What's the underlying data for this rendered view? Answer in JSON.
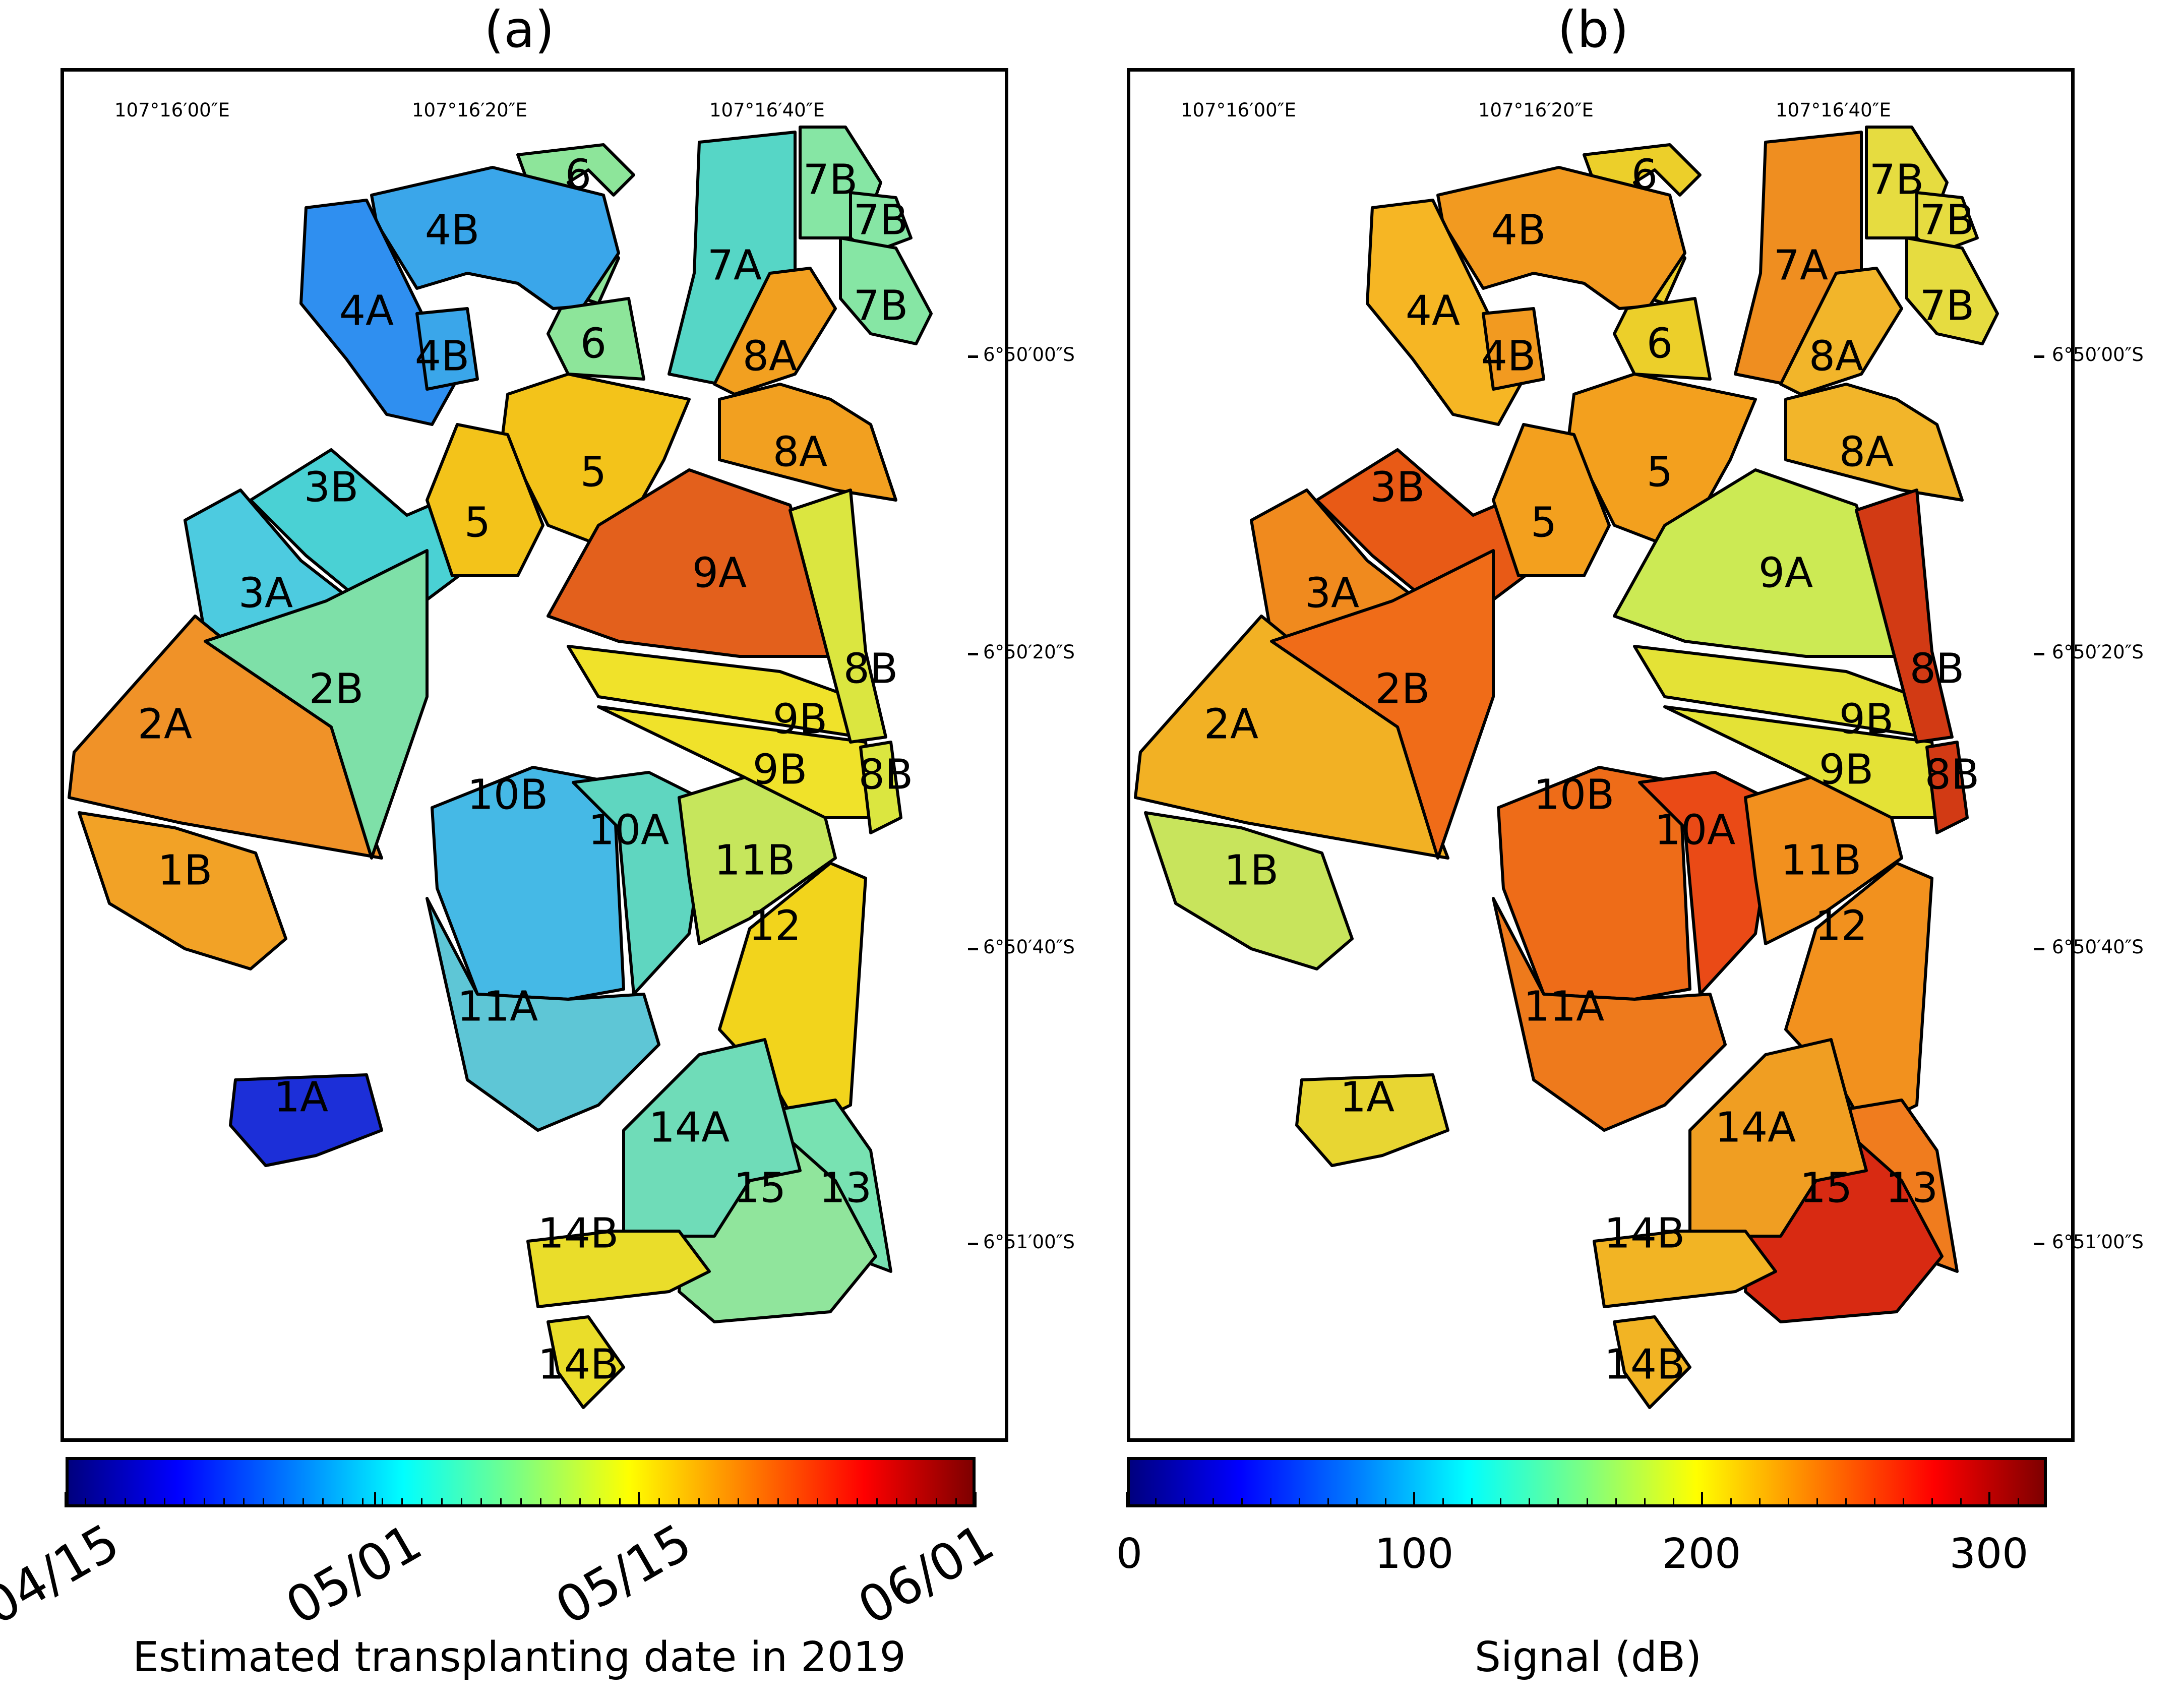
{
  "panels": [
    {
      "title": "(a)",
      "colorbar": {
        "ticks": [
          "04/15",
          "05/01",
          "05/15",
          "06/01"
        ],
        "title": "Estimated transplanting date in 2019",
        "colormap": "jet"
      },
      "lon_labels": [
        "107°16′00″E",
        "107°16′20″E",
        "107°16′40″E"
      ],
      "lat_labels": [
        "6°50′00″S",
        "6°50′20″S",
        "6°50′40″S",
        "6°51′00″S"
      ],
      "fields": [
        {
          "id": "1A",
          "color": "#1c2fd8"
        },
        {
          "id": "1B",
          "color": "#f2a226"
        },
        {
          "id": "2A",
          "color": "#f09228"
        },
        {
          "id": "2B",
          "color": "#7ee0a8"
        },
        {
          "id": "3A",
          "color": "#4dcbe0"
        },
        {
          "id": "3B",
          "color": "#4ad1d4"
        },
        {
          "id": "4A",
          "color": "#2f8ff0"
        },
        {
          "id": "4B",
          "color": "#3aa6ea"
        },
        {
          "id": "5",
          "color": "#f3c31a"
        },
        {
          "id": "6",
          "color": "#8de59a"
        },
        {
          "id": "7A",
          "color": "#56d6c6"
        },
        {
          "id": "7B",
          "color": "#86e6a4"
        },
        {
          "id": "8A",
          "color": "#f2a020"
        },
        {
          "id": "8B",
          "color": "#dbe640"
        },
        {
          "id": "9A",
          "color": "#e3601c"
        },
        {
          "id": "9B",
          "color": "#f0e22a"
        },
        {
          "id": "10A",
          "color": "#5fd6c0"
        },
        {
          "id": "10B",
          "color": "#45b9e6"
        },
        {
          "id": "11A",
          "color": "#5ec6d6"
        },
        {
          "id": "11B",
          "color": "#c6e65c"
        },
        {
          "id": "12",
          "color": "#f2d41c"
        },
        {
          "id": "13",
          "color": "#78e2b2"
        },
        {
          "id": "14A",
          "color": "#6fdcb8"
        },
        {
          "id": "14B",
          "color": "#eadd2a"
        },
        {
          "id": "15",
          "color": "#90e59c"
        }
      ]
    },
    {
      "title": "(b)",
      "colorbar": {
        "ticks": [
          "0",
          "100",
          "200",
          "300"
        ],
        "title": "Signal (dB)",
        "colormap": "jet",
        "range": [
          0,
          320
        ]
      },
      "lon_labels": [
        "107°16′00″E",
        "107°16′20″E",
        "107°16′40″E"
      ],
      "lat_labels": [
        "6°50′00″S",
        "6°50′20″S",
        "6°50′40″S",
        "6°51′00″S"
      ],
      "fields": [
        {
          "id": "1A",
          "color": "#e8d632"
        },
        {
          "id": "1B",
          "color": "#c8e45c"
        },
        {
          "id": "2A",
          "color": "#f2b124"
        },
        {
          "id": "2B",
          "color": "#f06c18"
        },
        {
          "id": "3A",
          "color": "#f08a1e"
        },
        {
          "id": "3B",
          "color": "#e85a16"
        },
        {
          "id": "4A",
          "color": "#f6b624"
        },
        {
          "id": "4B",
          "color": "#f29a20"
        },
        {
          "id": "5",
          "color": "#f3a01e"
        },
        {
          "id": "6",
          "color": "#eccf2a"
        },
        {
          "id": "7A",
          "color": "#ef8e20"
        },
        {
          "id": "7B",
          "color": "#e6dc40"
        },
        {
          "id": "8A",
          "color": "#f2b52a"
        },
        {
          "id": "8B",
          "color": "#d23a14"
        },
        {
          "id": "9A",
          "color": "#ccea54"
        },
        {
          "id": "9B",
          "color": "#e4e236"
        },
        {
          "id": "10A",
          "color": "#ea4a16"
        },
        {
          "id": "10B",
          "color": "#ee6c18"
        },
        {
          "id": "11A",
          "color": "#ee7a1c"
        },
        {
          "id": "11B",
          "color": "#f2901e"
        },
        {
          "id": "12",
          "color": "#f2911e"
        },
        {
          "id": "13",
          "color": "#f07c1e"
        },
        {
          "id": "14A",
          "color": "#f09e22"
        },
        {
          "id": "14B",
          "color": "#f2b424"
        },
        {
          "id": "15",
          "color": "#d82a12"
        }
      ]
    }
  ]
}
